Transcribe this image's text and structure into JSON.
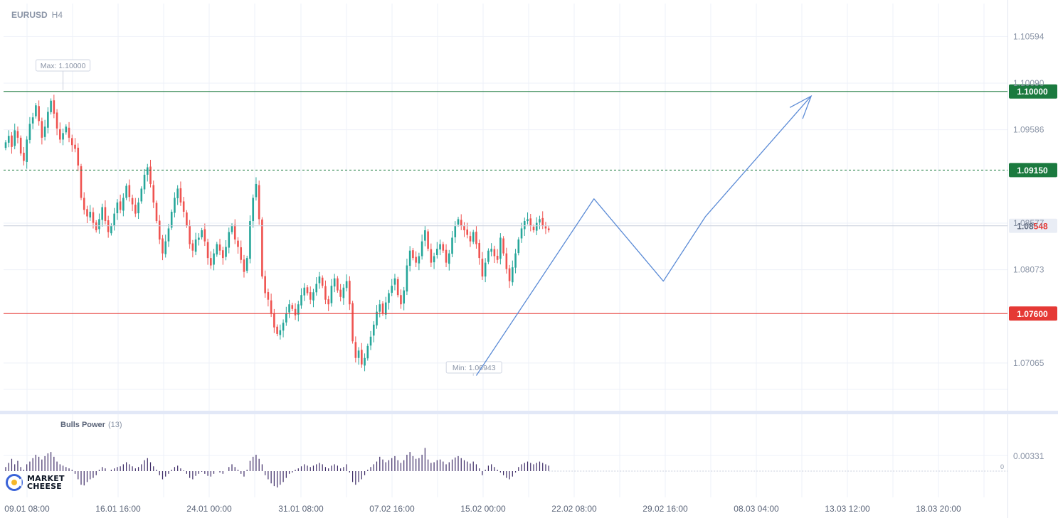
{
  "header": {
    "symbol": "EURUSD",
    "timeframe": "H4"
  },
  "indicator": {
    "name": "Bulls Power",
    "period": "(13)"
  },
  "logo": {
    "line1": "MARKET",
    "line2": "CHEESE"
  },
  "colors": {
    "bull": "#26a69a",
    "bear": "#ef5350",
    "resistance": "#1b7a3f",
    "support": "#e53935",
    "projection": "#5b8bd6",
    "grid": "#eef1f8",
    "axis_text": "#8a94a6",
    "histogram": "#3d2b66"
  },
  "chart_data": {
    "type": "candlestick",
    "ylim": [
      1.0655,
      1.1095
    ],
    "y_ticks": [
      {
        "value": 1.10594,
        "label": "1.10594"
      },
      {
        "value": 1.1009,
        "label": "1.10090"
      },
      {
        "value": 1.09586,
        "label": "1.09586"
      },
      {
        "value": 1.08577,
        "label": "1.08577"
      },
      {
        "value": 1.08073,
        "label": "1.08073"
      },
      {
        "value": 1.07065,
        "label": "1.07065"
      }
    ],
    "x_ticks": [
      "09.01 08:00",
      "16.01 16:00",
      "24.01 00:00",
      "31.01 08:00",
      "07.02 16:00",
      "15.02 00:00",
      "22.02 08:00",
      "29.02 16:00",
      "08.03 04:00",
      "13.03 12:00",
      "18.03 20:00"
    ],
    "levels": [
      {
        "value": 1.1,
        "label": "1.10000",
        "style": "solid",
        "color": "#1b7a3f"
      },
      {
        "value": 1.0915,
        "label": "1.09150",
        "style": "dashed",
        "color": "#1b7a3f"
      },
      {
        "value": 1.076,
        "label": "1.07600",
        "style": "solid",
        "color": "#e53935"
      }
    ],
    "current_price": {
      "value": 1.08548,
      "label_main": "1.08",
      "label_accent": "548"
    },
    "max_annotation": {
      "label": "Max: 1.10000",
      "value": 1.1
    },
    "min_annotation": {
      "label": "Min: 1.06943",
      "value": 1.06943
    },
    "projection_path": [
      {
        "bar": 1,
        "price": 1.0693
      },
      {
        "bar": 40,
        "price": 1.0884
      },
      {
        "bar": 63,
        "price": 1.0795
      },
      {
        "bar": 77,
        "price": 1.0865
      },
      {
        "bar": 112,
        "price": 1.0995
      }
    ],
    "indicator_ticks": [
      {
        "value": 0.00331,
        "label": "0.00331"
      },
      {
        "value": 0,
        "label": "0"
      }
    ],
    "prices": [
      1.0945,
      1.0952,
      1.094,
      1.0958,
      1.095,
      1.0933,
      1.0925,
      1.0948,
      1.0965,
      1.0972,
      1.0985,
      1.0968,
      1.095,
      1.0962,
      1.0978,
      1.099,
      1.0976,
      1.096,
      1.0948,
      1.0955,
      1.0962,
      1.095,
      1.0942,
      1.0938,
      1.092,
      1.0885,
      1.0872,
      1.0865,
      1.087,
      1.0858,
      1.085,
      1.0862,
      1.0875,
      1.086,
      1.0848,
      1.0855,
      1.0868,
      1.088,
      1.0872,
      1.0885,
      1.0898,
      1.0886,
      1.0878,
      1.0868,
      1.088,
      1.0895,
      1.091,
      1.0918,
      1.09,
      1.088,
      1.086,
      1.084,
      1.0825,
      1.0838,
      1.0852,
      1.087,
      1.0885,
      1.0895,
      1.088,
      1.087,
      1.0855,
      1.0835,
      1.0828,
      1.084,
      1.0842,
      1.085,
      1.0838,
      1.082,
      1.0812,
      1.0825,
      1.0835,
      1.0828,
      1.082,
      1.0832,
      1.0848,
      1.0855,
      1.084,
      1.0832,
      1.0818,
      1.0805,
      1.082,
      1.086,
      1.0885,
      1.09,
      1.0862,
      1.08,
      1.0782,
      1.0775,
      1.076,
      1.0745,
      1.0738,
      1.0742,
      1.075,
      1.076,
      1.077,
      1.0765,
      1.0758,
      1.077,
      1.078,
      1.0788,
      1.0782,
      1.0775,
      1.0783,
      1.0792,
      1.08,
      1.079,
      1.0775,
      1.077,
      1.079,
      1.0798,
      1.0785,
      1.0778,
      1.0788,
      1.0795,
      1.077,
      1.073,
      1.0712,
      1.072,
      1.0705,
      1.0712,
      1.0725,
      1.0735,
      1.0748,
      1.0762,
      1.077,
      1.076,
      1.0772,
      1.0782,
      1.079,
      1.0798,
      1.078,
      1.077,
      1.0785,
      1.0812,
      1.0828,
      1.082,
      1.0815,
      1.0822,
      1.0838,
      1.085,
      1.083,
      1.0815,
      1.0822,
      1.083,
      1.0835,
      1.0828,
      1.0815,
      1.0825,
      1.0842,
      1.0855,
      1.0862,
      1.0855,
      1.085,
      1.0845,
      1.0838,
      1.0848,
      1.0835,
      1.082,
      1.08,
      1.0815,
      1.0828,
      1.083,
      1.0822,
      1.0818,
      1.0842,
      1.0825,
      1.0808,
      1.0795,
      1.081,
      1.0825,
      1.084,
      1.0852,
      1.086,
      1.0862,
      1.0855,
      1.085,
      1.0858,
      1.0862,
      1.0855,
      1.0852,
      1.085
    ],
    "indicator_values": [
      0.0006,
      0.0012,
      0.0018,
      0.001,
      0.0015,
      0.0006,
      0.0002,
      0.001,
      0.0014,
      0.0019,
      0.0024,
      0.0021,
      0.0017,
      0.0022,
      0.0026,
      0.0028,
      0.0021,
      0.0014,
      0.001,
      0.0008,
      0.0006,
      0.0004,
      0.0002,
      -0.0004,
      -0.0012,
      -0.002,
      -0.0021,
      -0.0016,
      -0.0012,
      -0.001,
      -0.0006,
      0.0002,
      0.0006,
      0.0004,
      0.0,
      0.0002,
      0.0004,
      0.0006,
      0.0007,
      0.001,
      0.0013,
      0.001,
      0.0007,
      0.0004,
      0.0006,
      0.001,
      0.0016,
      0.0019,
      0.0013,
      0.0007,
      0.0002,
      -0.0006,
      -0.0012,
      -0.0008,
      -0.0004,
      0.0002,
      0.0006,
      0.0008,
      0.0004,
      0.0001,
      -0.0004,
      -0.001,
      -0.0012,
      -0.0007,
      -0.0004,
      -0.0001,
      -0.0004,
      -0.0007,
      -0.0008,
      -0.0004,
      0.0,
      -0.0002,
      -0.0004,
      0.0,
      0.0006,
      0.001,
      0.0006,
      0.0002,
      -0.0004,
      -0.0008,
      0.0002,
      0.0015,
      0.0021,
      0.0024,
      0.0018,
      0.001,
      -0.0006,
      -0.0012,
      -0.0018,
      -0.0022,
      -0.0024,
      -0.002,
      -0.0016,
      -0.001,
      -0.0004,
      -0.0002,
      0.0002,
      0.0004,
      0.0007,
      0.001,
      0.0008,
      0.0006,
      0.0008,
      0.001,
      0.0012,
      0.001,
      0.0006,
      0.0004,
      0.0008,
      0.001,
      0.0008,
      0.0004,
      0.0006,
      0.001,
      -0.0002,
      -0.0016,
      -0.002,
      -0.0016,
      -0.0012,
      -0.0006,
      0.0002,
      0.0006,
      0.001,
      0.0014,
      0.0021,
      0.0017,
      0.0013,
      0.0016,
      0.0019,
      0.0022,
      0.0016,
      0.0012,
      0.0016,
      0.0024,
      0.0028,
      0.0022,
      0.0018,
      0.0019,
      0.0024,
      0.0034,
      0.0017,
      0.0012,
      0.0013,
      0.0016,
      0.0017,
      0.0014,
      0.001,
      0.0013,
      0.0017,
      0.002,
      0.0022,
      0.0019,
      0.0016,
      0.0014,
      0.0011,
      0.0014,
      0.001,
      0.0004,
      -0.0006,
      0.0002,
      0.0008,
      0.001,
      0.0006,
      0.0002,
      -0.0002,
      -0.0006,
      -0.001,
      -0.0012,
      -0.0008,
      -0.0002,
      0.0006,
      0.001,
      0.0012,
      0.0014,
      0.0012,
      0.001,
      0.0012,
      0.0014,
      0.0012,
      0.001,
      0.0008
    ]
  }
}
